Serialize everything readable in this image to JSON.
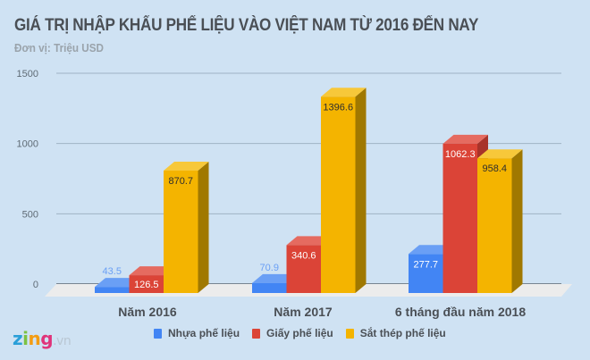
{
  "header": {
    "title": "GIÁ TRỊ NHẬP KHẨU PHẾ LIỆU VÀO VIỆT NAM TỪ 2016 ĐẾN NAY",
    "subtitle": "Đơn vị: Triệu USD"
  },
  "chart_data": {
    "type": "bar",
    "title": "GIÁ TRỊ NHẬP KHẨU PHẾ LIỆU VÀO VIỆT NAM TỪ 2016 ĐẾN NAY",
    "subtitle": "Đơn vị: Triệu USD",
    "xlabel": "",
    "ylabel": "",
    "categories": [
      "Năm 2016",
      "Năm 2017",
      "6 tháng đầu năm 2018"
    ],
    "series": [
      {
        "name": "Nhựa phế liệu",
        "color": "#4285f4",
        "values": [
          43.5,
          70.9,
          277.7
        ],
        "labels": [
          "43.5",
          "70.9",
          "277.7"
        ]
      },
      {
        "name": "Giấy phế liệu",
        "color": "#db4437",
        "values": [
          126.5,
          340.6,
          1062.3
        ],
        "labels": [
          "126.5",
          "340.6",
          "1062.3"
        ]
      },
      {
        "name": "Sắt thép phế liệu",
        "color": "#f4b400",
        "values": [
          870.7,
          1396.6,
          958.4
        ],
        "labels": [
          "870.7",
          "1396.6",
          "958.4"
        ]
      }
    ],
    "yticks": [
      "0",
      "500",
      "1000",
      "1500"
    ],
    "ylim": [
      0,
      1500
    ],
    "grid": true,
    "legend_position": "bottom",
    "style": "3d-column"
  },
  "branding": {
    "logo_z": "z",
    "logo_i": "i",
    "logo_n": "n",
    "logo_g": "g",
    "logo_suffix": ".vn"
  }
}
